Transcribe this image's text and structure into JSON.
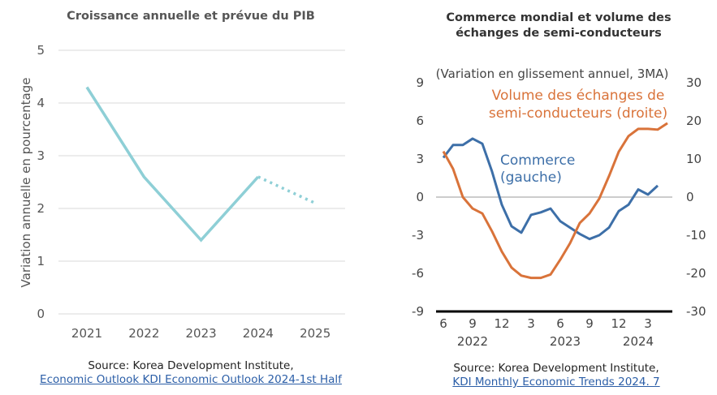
{
  "chart_data": [
    {
      "type": "line",
      "title": "Croissance annuelle et prévue du PIB",
      "ylabel": "Variation annuelle en pourcentage",
      "xlabel": "",
      "categories": [
        "2021",
        "2022",
        "2023",
        "2024",
        "2025"
      ],
      "series": [
        {
          "values": [
            4.3,
            2.6,
            1.4,
            2.6,
            2.1
          ],
          "forecast_from": "2024",
          "color": "#8ecfd6"
        }
      ],
      "ylim": [
        0,
        5
      ],
      "yticks": [
        "0",
        "1",
        "2",
        "3",
        "4",
        "5"
      ],
      "grid": true,
      "source_label": "Source: Korea Development Institute,",
      "source_link": "Economic Outlook KDI Economic Outlook 2024-1st Half"
    },
    {
      "type": "line",
      "title_line1": "Commerce mondial et volume des",
      "title_line2": "échanges de semi-conducteurs",
      "subtitle": "(Variation en glissement annuel, 3MA)",
      "x": [
        "2022-06",
        "2022-07",
        "2022-08",
        "2022-09",
        "2022-10",
        "2022-11",
        "2022-12",
        "2023-01",
        "2023-02",
        "2023-03",
        "2023-04",
        "2023-05",
        "2023-06",
        "2023-07",
        "2023-08",
        "2023-09",
        "2023-10",
        "2023-11",
        "2023-12",
        "2024-01",
        "2024-02",
        "2024-03",
        "2024-04",
        "2024-05"
      ],
      "xtick_labels": [
        "6",
        "9",
        "12",
        "3",
        "6",
        "9",
        "12",
        "3"
      ],
      "year_labels": [
        "2022",
        "2023",
        "2024"
      ],
      "ylim_left": [
        -9,
        9
      ],
      "yticks_left": [
        "-9",
        "-6",
        "-3",
        "0",
        "3",
        "6",
        "9"
      ],
      "ylim_right": [
        -30,
        30
      ],
      "yticks_right": [
        "-30",
        "-20",
        "-10",
        "0",
        "10",
        "20",
        "30"
      ],
      "series": [
        {
          "name": "Commerce\n(gauche)",
          "name_line1": "Commerce",
          "name_line2": "(gauche)",
          "axis": "left",
          "color": "#3d6fa8",
          "values": [
            3.1,
            4.1,
            4.1,
            4.6,
            4.2,
            2.0,
            -0.6,
            -2.3,
            -2.8,
            -1.4,
            -1.2,
            -0.9,
            -1.9,
            -2.4,
            -2.9,
            -3.3,
            -3.0,
            -2.4,
            -1.1,
            -0.6,
            0.6,
            0.2,
            0.9,
            null
          ]
        },
        {
          "name": "Volume des échanges de semi-conducteurs (droite)",
          "name_line1": "Volume des échanges de",
          "name_line2": "semi-conducteurs (droite)",
          "axis": "right",
          "color": "#d9733a",
          "values": [
            12,
            7.4,
            0,
            -3,
            -4.3,
            -9,
            -14.3,
            -18.5,
            -20.6,
            -21.2,
            -21.2,
            -20.3,
            -16.4,
            -12.1,
            -6.8,
            -4.3,
            -0.4,
            5.5,
            11.9,
            16,
            17.9,
            17.9,
            17.7,
            19.4
          ]
        }
      ],
      "source_label": "Source: Korea Development Institute,",
      "source_link": "KDI Monthly Economic Trends 2024. 7"
    }
  ]
}
